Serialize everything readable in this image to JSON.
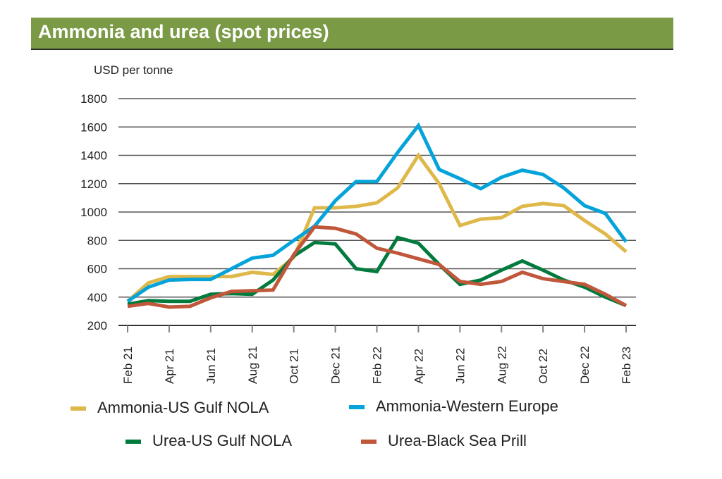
{
  "chart_data": {
    "type": "line",
    "title": "Ammonia and urea (spot prices)",
    "ylabel": "USD per tonne",
    "xlabel": "",
    "ylim": [
      200,
      1800
    ],
    "yticks": [
      200,
      400,
      600,
      800,
      1000,
      1200,
      1400,
      1600,
      1800
    ],
    "grid": true,
    "legend_position": "bottom",
    "x": [
      "Feb 21",
      "Mar 21",
      "Apr 21",
      "May 21",
      "Jun 21",
      "Jul 21",
      "Aug 21",
      "Sep 21",
      "Oct 21",
      "Nov 21",
      "Dec 21",
      "Jan 22",
      "Feb 22",
      "Mar 22",
      "Apr 22",
      "May 22",
      "Jun 22",
      "Jul 22",
      "Aug 22",
      "Sep 22",
      "Oct 22",
      "Nov 22",
      "Dec 22",
      "Jan 23",
      "Feb 23"
    ],
    "xtick_labels": [
      "Feb 21",
      "Apr 21",
      "Jun 21",
      "Aug 21",
      "Oct 21",
      "Dec 21",
      "Feb 22",
      "Apr 22",
      "Jun 22",
      "Aug 22",
      "Oct 22",
      "Dec 22",
      "Feb 23"
    ],
    "series": [
      {
        "name": "Ammonia-US Gulf NOLA",
        "color": "#dfb84a",
        "values": [
          370,
          500,
          545,
          545,
          545,
          545,
          575,
          560,
          680,
          1030,
          1030,
          1040,
          1065,
          1170,
          1400,
          1200,
          905,
          950,
          960,
          1040,
          1060,
          1045,
          940,
          845,
          720
        ]
      },
      {
        "name": "Ammonia-Western Europe",
        "color": "#04a3d9",
        "values": [
          370,
          470,
          520,
          525,
          525,
          600,
          675,
          695,
          800,
          900,
          1080,
          1215,
          1215,
          1420,
          1610,
          1300,
          1235,
          1165,
          1245,
          1295,
          1265,
          1170,
          1045,
          990,
          790
        ]
      },
      {
        "name": "Urea-US Gulf NOLA",
        "color": "#007a3d",
        "values": [
          350,
          375,
          370,
          370,
          420,
          425,
          420,
          520,
          690,
          785,
          775,
          600,
          580,
          820,
          780,
          630,
          490,
          520,
          590,
          655,
          590,
          520,
          470,
          400,
          340
        ]
      },
      {
        "name": "Urea-Black Sea Prill",
        "color": "#c0563a",
        "values": [
          335,
          355,
          330,
          335,
          395,
          440,
          445,
          450,
          700,
          895,
          885,
          845,
          745,
          710,
          670,
          630,
          510,
          490,
          510,
          575,
          530,
          510,
          490,
          420,
          340
        ]
      }
    ]
  }
}
